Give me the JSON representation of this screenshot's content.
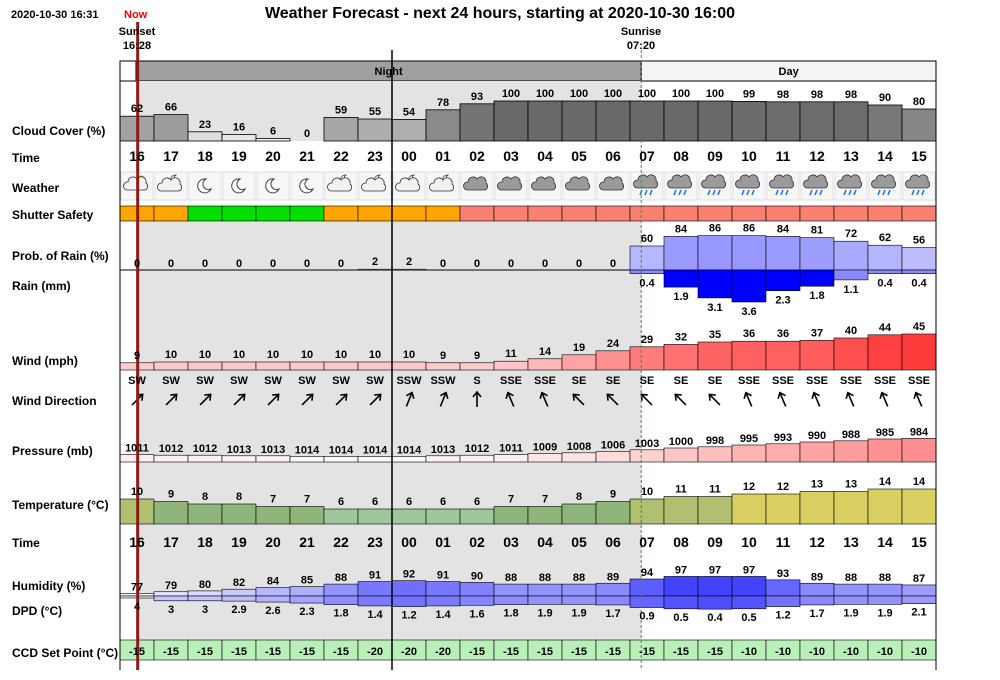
{
  "header": {
    "timestamp": "2020-10-30 16:31",
    "now_label": "Now",
    "title": "Weather Forecast - next 24 hours, starting at 2020-10-30 16:00",
    "sunset_label": "Sunset",
    "sunset_time": "16:28",
    "sunrise_label": "Sunrise",
    "sunrise_time": "07:20",
    "night_label": "Night",
    "day_label": "Day"
  },
  "rows": {
    "cloud": "Cloud Cover (%)",
    "time": "Time",
    "weather": "Weather",
    "shutter": "Shutter Safety",
    "prob_rain": "Prob. of Rain (%)",
    "rain": "Rain (mm)",
    "wind": "Wind (mph)",
    "wind_dir": "Wind Direction",
    "pressure": "Pressure (mb)",
    "temperature": "Temperature (°C)",
    "time2": "Time",
    "humidity": "Humidity (%)",
    "dpd": "DPD (°C)",
    "ccd": "CCD Set Point (°C)"
  },
  "colors": {
    "night_bg": "#e3e3e3",
    "now_line": "#8b1a1a",
    "shutter_orange": "#ffa500",
    "shutter_green": "#00e000",
    "shutter_red": "#fa8072",
    "ccd_bg": "#b8f0b8"
  },
  "chart_data": {
    "type": "table",
    "hours": [
      "16",
      "17",
      "18",
      "19",
      "20",
      "21",
      "22",
      "23",
      "00",
      "01",
      "02",
      "03",
      "04",
      "05",
      "06",
      "07",
      "08",
      "09",
      "10",
      "11",
      "12",
      "13",
      "14",
      "15"
    ],
    "cloud_cover": [
      62,
      66,
      23,
      16,
      6,
      0,
      59,
      55,
      54,
      78,
      93,
      100,
      100,
      100,
      100,
      100,
      100,
      100,
      99,
      98,
      98,
      98,
      90,
      80
    ],
    "weather_icons": [
      "partly-cloudy-sun",
      "partly-cloudy-night",
      "moon",
      "moon",
      "moon",
      "moon",
      "partly-cloudy-night",
      "partly-cloudy-night",
      "partly-cloudy-night",
      "partly-cloudy-night",
      "cloud",
      "cloud",
      "cloud",
      "cloud",
      "cloud",
      "cloud-rain",
      "cloud-rain",
      "cloud-rain",
      "cloud-rain",
      "cloud-rain",
      "cloud-rain",
      "cloud-rain",
      "cloud-rain",
      "cloud-rain"
    ],
    "shutter_safety": [
      "orange",
      "orange",
      "green",
      "green",
      "green",
      "green",
      "orange",
      "orange",
      "orange",
      "orange",
      "red",
      "red",
      "red",
      "red",
      "red",
      "red",
      "red",
      "red",
      "red",
      "red",
      "red",
      "red",
      "red",
      "red"
    ],
    "prob_rain": [
      0,
      0,
      0,
      0,
      0,
      0,
      0,
      2,
      2,
      0,
      0,
      0,
      0,
      0,
      0,
      60,
      84,
      86,
      86,
      84,
      81,
      72,
      62,
      56
    ],
    "rain_mm": [
      null,
      null,
      null,
      null,
      null,
      null,
      null,
      null,
      null,
      null,
      null,
      null,
      null,
      null,
      null,
      0.4,
      1.9,
      3.1,
      3.6,
      2.3,
      1.8,
      1.1,
      0.4,
      0.4
    ],
    "wind_mph": [
      9,
      10,
      10,
      10,
      10,
      10,
      10,
      10,
      10,
      9,
      9,
      11,
      14,
      19,
      24,
      29,
      32,
      35,
      36,
      36,
      37,
      40,
      44,
      45
    ],
    "wind_dir": [
      "SW",
      "SW",
      "SW",
      "SW",
      "SW",
      "SW",
      "SW",
      "SW",
      "SSW",
      "SSW",
      "S",
      "SSE",
      "SSE",
      "SE",
      "SE",
      "SE",
      "SE",
      "SE",
      "SSE",
      "SSE",
      "SSE",
      "SSE",
      "SSE",
      "SSE"
    ],
    "wind_deg": [
      225,
      225,
      225,
      225,
      225,
      225,
      225,
      225,
      202,
      202,
      180,
      157,
      157,
      135,
      135,
      135,
      135,
      135,
      157,
      157,
      157,
      157,
      157,
      157
    ],
    "pressure_mb": [
      1011,
      1012,
      1012,
      1013,
      1013,
      1014,
      1014,
      1014,
      1014,
      1013,
      1012,
      1011,
      1009,
      1008,
      1006,
      1003,
      1000,
      998,
      995,
      993,
      990,
      988,
      985,
      984
    ],
    "temperature_c": [
      10,
      9,
      8,
      8,
      7,
      7,
      6,
      6,
      6,
      6,
      6,
      7,
      7,
      8,
      9,
      10,
      11,
      11,
      12,
      12,
      13,
      13,
      14,
      14
    ],
    "humidity_pct": [
      77,
      79,
      80,
      82,
      84,
      85,
      88,
      91,
      92,
      91,
      90,
      88,
      88,
      88,
      89,
      94,
      97,
      97,
      97,
      93,
      89,
      88,
      88,
      87
    ],
    "dpd_c": [
      4,
      3,
      3,
      2.9,
      2.6,
      2.3,
      1.8,
      1.4,
      1.2,
      1.4,
      1.6,
      1.8,
      1.9,
      1.9,
      1.7,
      0.9,
      0.5,
      0.4,
      0.5,
      1.2,
      1.7,
      1.9,
      1.9,
      2.1
    ],
    "ccd_set_point": [
      -15,
      -15,
      -15,
      -15,
      -15,
      -15,
      -15,
      -20,
      -20,
      -20,
      -15,
      -15,
      -15,
      -15,
      -15,
      -15,
      -15,
      -15,
      -10,
      -10,
      -10,
      -10,
      -10,
      -10
    ],
    "now_hour_fraction": 0.52,
    "sunset_hour_fraction": 0.47,
    "sunrise_hour_fraction": 15.33,
    "midnight_index": 8
  }
}
